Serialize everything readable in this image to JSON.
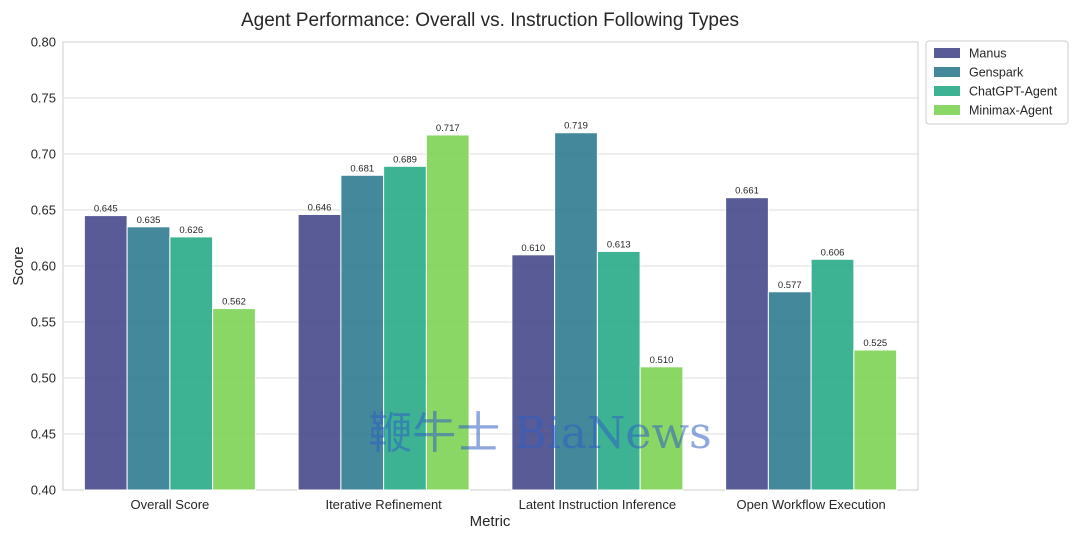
{
  "chart_data": {
    "type": "bar",
    "title": "Agent Performance: Overall vs. Instruction Following Types",
    "xlabel": "Metric",
    "ylabel": "Score",
    "ylim": [
      0.4,
      0.8
    ],
    "yticks": [
      "0.40",
      "0.45",
      "0.50",
      "0.55",
      "0.60",
      "0.65",
      "0.70",
      "0.75",
      "0.80"
    ],
    "grid": true,
    "legend_position": "outside top-right",
    "categories": [
      "Overall Score",
      "Iterative Refinement",
      "Latent Instruction Inference",
      "Open Workflow Execution"
    ],
    "series": [
      {
        "name": "Manus",
        "color": "#414487",
        "values": [
          0.645,
          0.646,
          0.61,
          0.661
        ],
        "labels": [
          "0.645",
          "0.646",
          "0.610",
          "0.661"
        ]
      },
      {
        "name": "Genspark",
        "color": "#2a788e",
        "values": [
          0.635,
          0.681,
          0.719,
          0.577
        ],
        "labels": [
          "0.635",
          "0.681",
          "0.719",
          "0.577"
        ]
      },
      {
        "name": "ChatGPT-Agent",
        "color": "#22a884",
        "values": [
          0.626,
          0.689,
          0.613,
          0.606
        ],
        "labels": [
          "0.626",
          "0.689",
          "0.613",
          "0.606"
        ]
      },
      {
        "name": "Minimax-Agent",
        "color": "#7ad151",
        "values": [
          0.562,
          0.717,
          0.51,
          0.525
        ],
        "labels": [
          "0.562",
          "0.717",
          "0.510",
          "0.525"
        ]
      }
    ]
  },
  "watermark": {
    "text": "鞭牛士 BiaNews"
  }
}
